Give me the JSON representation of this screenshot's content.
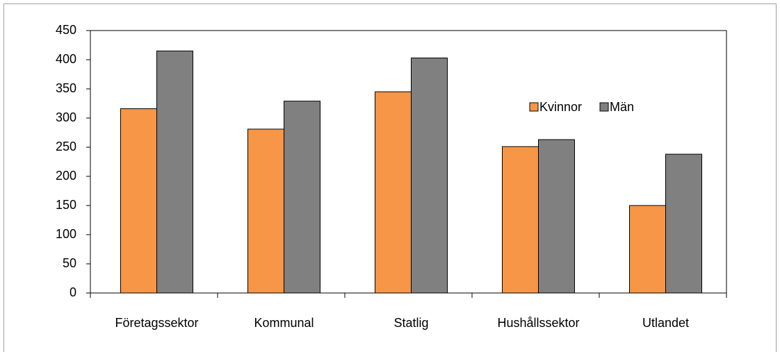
{
  "chart_data": {
    "type": "bar",
    "categories": [
      "Företagssektor",
      "Kommunal",
      "Statlig",
      "Hushållssektor",
      "Utlandet"
    ],
    "series": [
      {
        "name": "Kvinnor",
        "color": "#f79646",
        "values": [
          316,
          281,
          345,
          251,
          150
        ]
      },
      {
        "name": "Män",
        "color": "#808080",
        "values": [
          415,
          329,
          403,
          263,
          238
        ]
      }
    ],
    "ylim": [
      0,
      450
    ],
    "yticks": [
      0,
      50,
      100,
      150,
      200,
      250,
      300,
      350,
      400,
      450
    ],
    "grid": false,
    "legend": "upper right"
  }
}
